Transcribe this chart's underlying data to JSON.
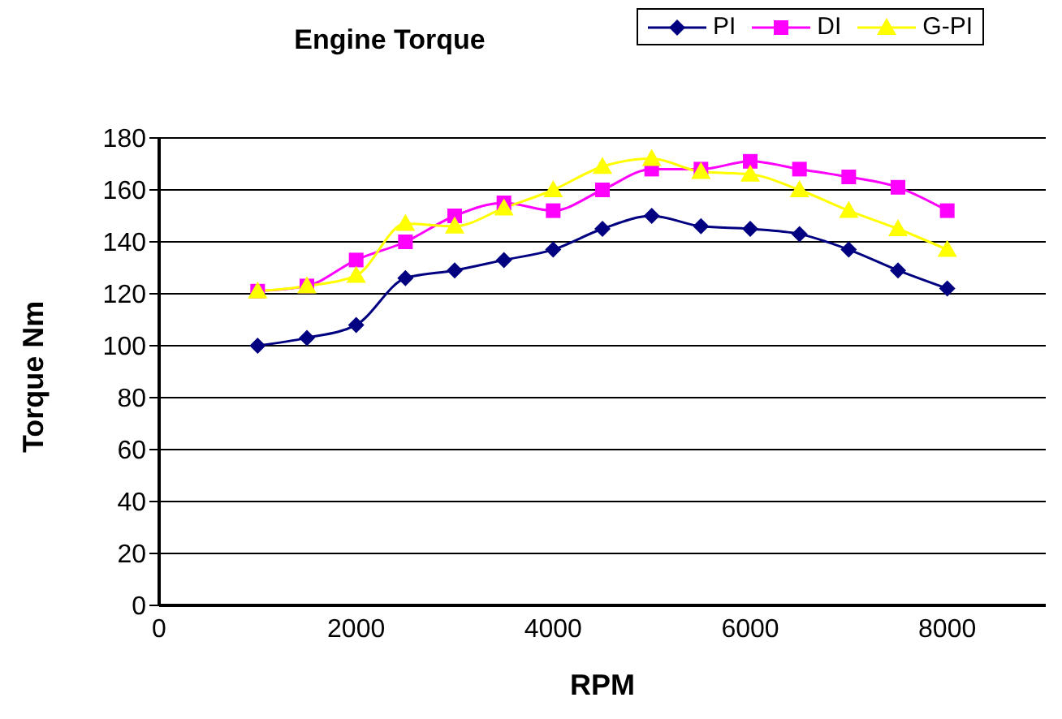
{
  "chart_data": {
    "type": "line",
    "title": "Engine Torque",
    "xlabel": "RPM",
    "ylabel": "Torque Nm",
    "x": [
      1000,
      1500,
      2000,
      2500,
      3000,
      3500,
      4000,
      4500,
      5000,
      5500,
      6000,
      6500,
      7000,
      7500,
      8000
    ],
    "series": [
      {
        "name": "PI",
        "color": "#000080",
        "marker": "diamond",
        "values": [
          100,
          103,
          108,
          126,
          129,
          133,
          137,
          145,
          150,
          146,
          145,
          143,
          137,
          129,
          122
        ]
      },
      {
        "name": "DI",
        "color": "#ff00ff",
        "marker": "square",
        "values": [
          121,
          123,
          133,
          140,
          150,
          155,
          152,
          160,
          168,
          168,
          171,
          168,
          165,
          161,
          152
        ]
      },
      {
        "name": "G-PI",
        "color": "#ffff00",
        "marker": "triangle",
        "values": [
          121,
          123,
          127,
          147,
          146,
          153,
          160,
          169,
          172,
          167,
          166,
          160,
          152,
          145,
          137
        ]
      }
    ],
    "xlim": [
      0,
      9000
    ],
    "xticks": [
      0,
      2000,
      4000,
      6000,
      8000
    ],
    "ylim": [
      0,
      180
    ],
    "yticks": [
      0,
      20,
      40,
      60,
      80,
      100,
      120,
      140,
      160,
      180
    ],
    "grid": "y",
    "legend": "top right",
    "line_style": "solid"
  }
}
